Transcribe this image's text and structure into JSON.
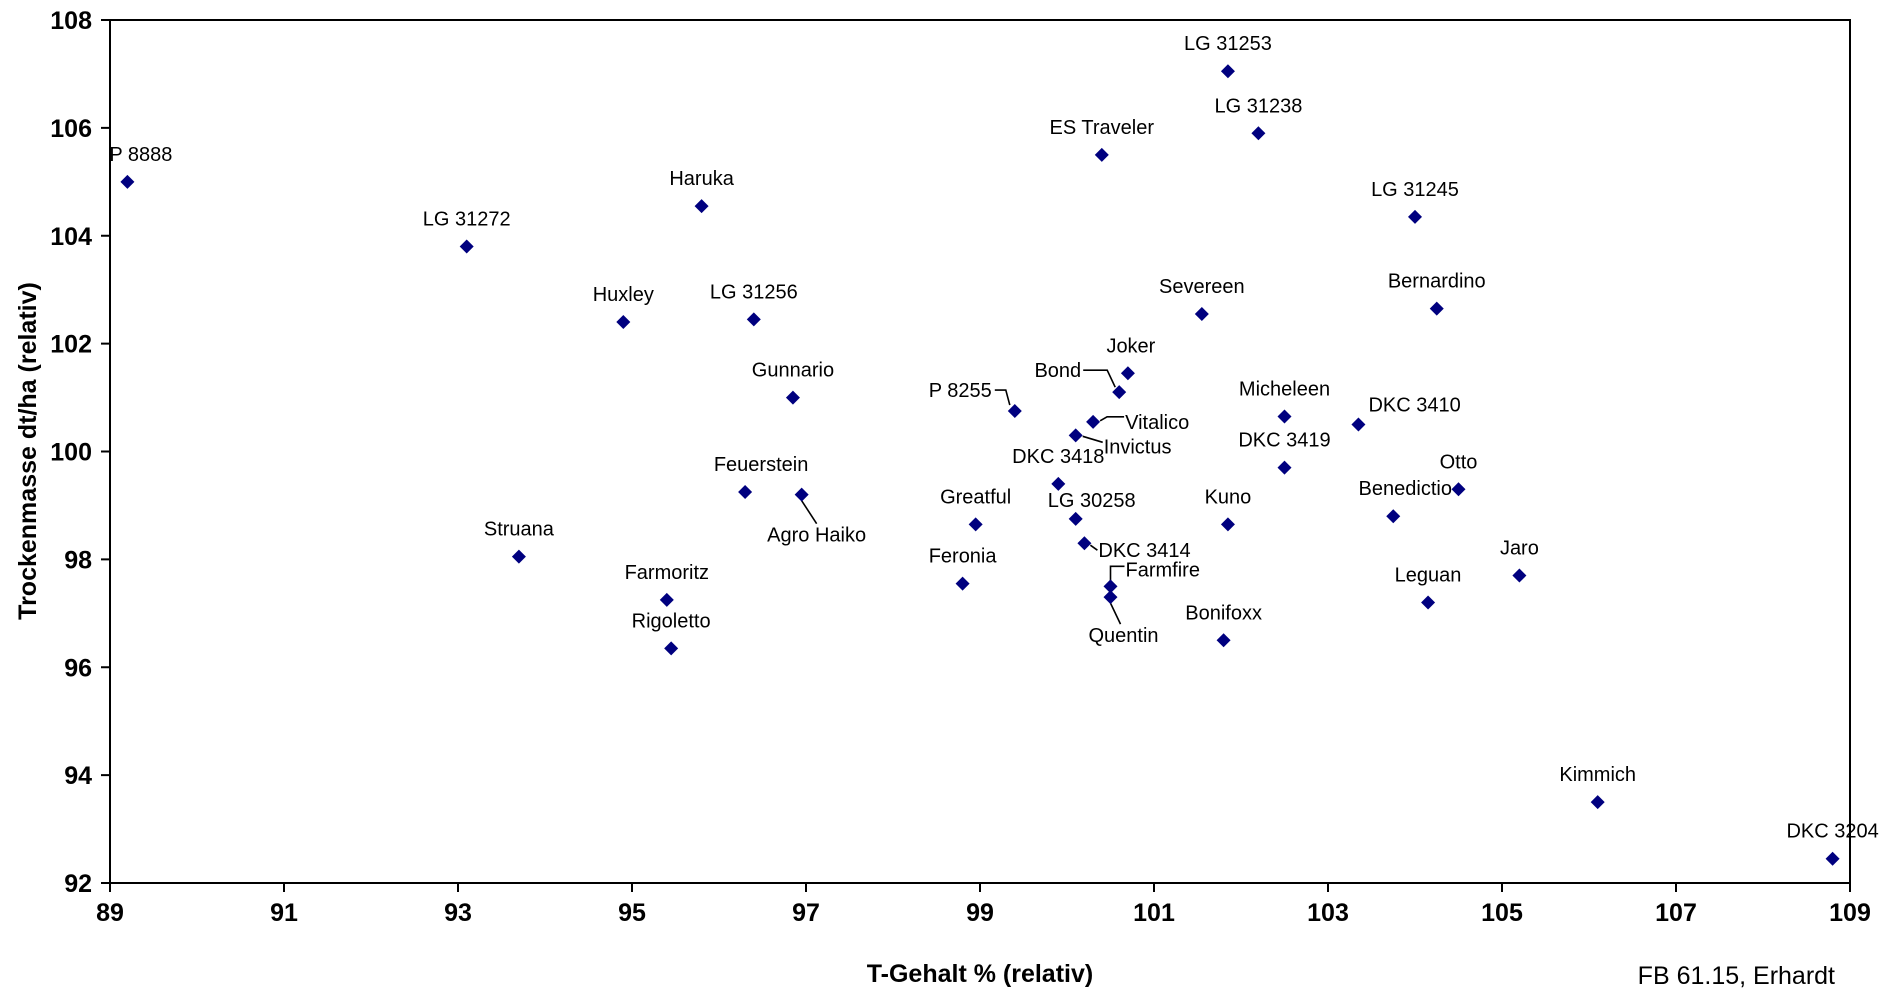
{
  "credit": "FB 61.15, Erhardt",
  "chart_data": {
    "type": "scatter",
    "title": "",
    "xlabel": "T-Gehalt % (relativ)",
    "ylabel": "Trockenmasse dt/ha (relativ)",
    "xlim": [
      89,
      109
    ],
    "ylim": [
      92,
      108
    ],
    "xticks": [
      89,
      91,
      93,
      95,
      97,
      99,
      101,
      103,
      105,
      107,
      109
    ],
    "yticks": [
      92,
      94,
      96,
      98,
      100,
      102,
      104,
      106,
      108
    ],
    "grid": false,
    "legend": "none",
    "marker": "diamond",
    "marker_color": "#00007F",
    "points": [
      {
        "label": "P 8888",
        "x": 89.2,
        "y": 105.0
      },
      {
        "label": "LG 31272",
        "x": 93.1,
        "y": 103.8
      },
      {
        "label": "Haruka",
        "x": 95.8,
        "y": 104.55
      },
      {
        "label": "Huxley",
        "x": 94.9,
        "y": 102.4
      },
      {
        "label": "LG 31256",
        "x": 96.4,
        "y": 102.45
      },
      {
        "label": "Gunnario",
        "x": 96.85,
        "y": 101.0
      },
      {
        "label": "Feuerstein",
        "x": 96.3,
        "y": 99.25
      },
      {
        "label": "Agro Haiko",
        "x": 96.95,
        "y": 99.2
      },
      {
        "label": "Struana",
        "x": 93.7,
        "y": 98.05
      },
      {
        "label": "Farmoritz",
        "x": 95.4,
        "y": 97.25
      },
      {
        "label": "Rigoletto",
        "x": 95.45,
        "y": 96.35
      },
      {
        "label": "ES Traveler",
        "x": 100.4,
        "y": 105.5
      },
      {
        "label": "LG 31253",
        "x": 101.85,
        "y": 107.05
      },
      {
        "label": "LG 31238",
        "x": 102.2,
        "y": 105.9
      },
      {
        "label": "LG 31245",
        "x": 104.0,
        "y": 104.35
      },
      {
        "label": "Severeen",
        "x": 101.55,
        "y": 102.55
      },
      {
        "label": "Bernardino",
        "x": 104.25,
        "y": 102.65
      },
      {
        "label": "Joker",
        "x": 100.7,
        "y": 101.45
      },
      {
        "label": "Bond",
        "x": 100.6,
        "y": 101.1
      },
      {
        "label": "P 8255",
        "x": 99.4,
        "y": 100.75
      },
      {
        "label": "Vitalico",
        "x": 100.3,
        "y": 100.55
      },
      {
        "label": "Invictus",
        "x": 100.1,
        "y": 100.3
      },
      {
        "label": "Micheleen",
        "x": 102.5,
        "y": 100.65
      },
      {
        "label": "DKC 3410",
        "x": 103.35,
        "y": 100.5
      },
      {
        "label": "DKC 3418",
        "x": 99.9,
        "y": 99.4
      },
      {
        "label": "DKC 3419",
        "x": 102.5,
        "y": 99.7
      },
      {
        "label": "Otto",
        "x": 104.5,
        "y": 99.3
      },
      {
        "label": "Greatful",
        "x": 98.95,
        "y": 98.65
      },
      {
        "label": "LG 30258",
        "x": 100.1,
        "y": 98.75
      },
      {
        "label": "Kuno",
        "x": 101.85,
        "y": 98.65
      },
      {
        "label": "Benedictio",
        "x": 103.75,
        "y": 98.8
      },
      {
        "label": "DKC 3414",
        "x": 100.2,
        "y": 98.3
      },
      {
        "label": "Feronia",
        "x": 98.8,
        "y": 97.55
      },
      {
        "label": "Farmfire",
        "x": 100.5,
        "y": 97.5
      },
      {
        "label": "Quentin",
        "x": 100.5,
        "y": 97.3
      },
      {
        "label": "Jaro",
        "x": 105.2,
        "y": 97.7
      },
      {
        "label": "Leguan",
        "x": 104.15,
        "y": 97.2
      },
      {
        "label": "Bonifoxx",
        "x": 101.8,
        "y": 96.5
      },
      {
        "label": "Kimmich",
        "x": 106.1,
        "y": 93.5
      },
      {
        "label": "DKC 3204",
        "x": 108.8,
        "y": 92.45
      }
    ]
  }
}
